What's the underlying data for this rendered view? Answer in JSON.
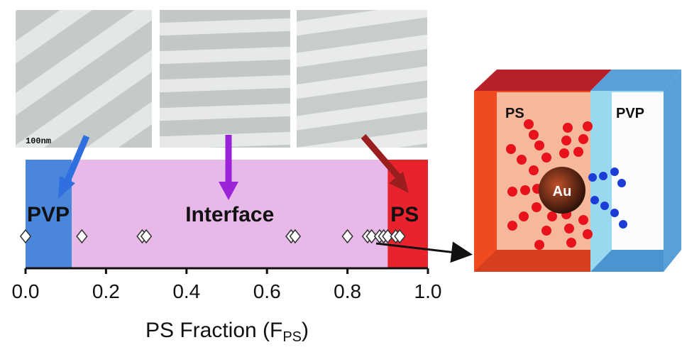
{
  "chart_data": {
    "type": "scatter",
    "scale_bar": "100nm",
    "regions": [
      {
        "label": "PVP",
        "start": 0,
        "end": 0.115,
        "color": "#4a86dc"
      },
      {
        "label": "Interface",
        "start": 0.115,
        "end": 0.9,
        "color": "#e8b8e8"
      },
      {
        "label": "PS",
        "start": 0.9,
        "end": 1.0,
        "color": "#e8232e"
      }
    ],
    "x": [
      0.0,
      0.14,
      0.29,
      0.3,
      0.66,
      0.67,
      0.8,
      0.85,
      0.86,
      0.88,
      0.89,
      0.9,
      0.92,
      0.93
    ],
    "xlim": [
      0,
      1
    ],
    "xticks": [
      {
        "value": 0,
        "label": "0.0"
      },
      0.2,
      0.4,
      0.6,
      0.8,
      {
        "value": 1,
        "label": "1.0"
      }
    ],
    "xlabel": "PS Fraction (F",
    "xlabel_sub": "PS",
    "xlabel_end": ")",
    "diagram": {
      "left": "PS",
      "right": "PVP",
      "core": "Au"
    }
  }
}
